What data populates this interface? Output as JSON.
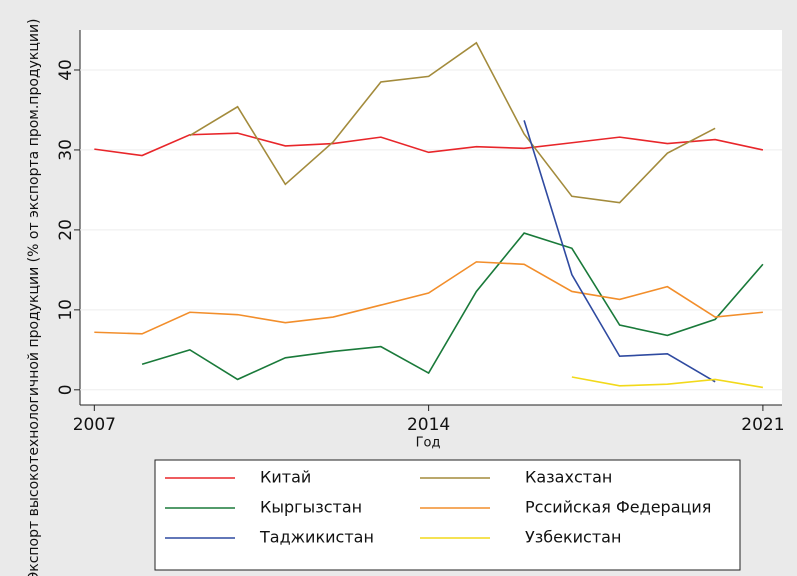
{
  "chart_data": {
    "type": "line",
    "y_label": "Экспорт высокотехнологичной продукции (% от экспорта пром.продукции)",
    "x_label": "Год",
    "x": [
      2007,
      2008,
      2009,
      2010,
      2011,
      2012,
      2013,
      2014,
      2015,
      2016,
      2017,
      2018,
      2019,
      2020,
      2021
    ],
    "xlim": [
      2006.7,
      2021.4
    ],
    "xticks": [
      2007,
      2014,
      2021
    ],
    "ylim": [
      -1.9,
      45
    ],
    "yticks": [
      0,
      10,
      20,
      30,
      40
    ],
    "grid": true,
    "legend": "bottom",
    "series": [
      {
        "name": "Китай",
        "color": "#e8262a",
        "values": [
          30.1,
          29.3,
          31.9,
          32.1,
          30.5,
          30.8,
          31.6,
          29.7,
          30.4,
          30.2,
          30.9,
          31.6,
          30.8,
          31.3,
          30.0
        ]
      },
      {
        "name": "Казахстан",
        "color": "#a38b3c",
        "values": [
          null,
          null,
          31.8,
          35.4,
          25.7,
          31.0,
          38.5,
          39.2,
          43.4,
          32.0,
          24.2,
          23.4,
          29.6,
          32.7,
          null
        ]
      },
      {
        "name": "Кыргызстан",
        "color": "#1a7a3a",
        "values": [
          null,
          3.2,
          5.0,
          1.3,
          4.0,
          4.8,
          5.4,
          2.1,
          12.3,
          19.6,
          17.7,
          8.1,
          6.8,
          8.8,
          15.7
        ]
      },
      {
        "name": "Рссийская Федерация",
        "color": "#f28e2b",
        "values": [
          7.2,
          7.0,
          9.7,
          9.4,
          8.4,
          9.1,
          10.6,
          12.1,
          16.0,
          15.7,
          12.3,
          11.3,
          12.9,
          9.1,
          9.7
        ]
      },
      {
        "name": "Таджикистан",
        "color": "#2f4aa0",
        "values": [
          null,
          null,
          null,
          null,
          null,
          null,
          null,
          null,
          null,
          33.7,
          14.4,
          4.2,
          4.5,
          1.0,
          null
        ]
      },
      {
        "name": "Узбекистан",
        "color": "#f2d91a",
        "values": [
          null,
          null,
          null,
          null,
          null,
          null,
          null,
          null,
          null,
          null,
          1.6,
          0.5,
          0.7,
          1.3,
          0.3
        ]
      }
    ]
  }
}
